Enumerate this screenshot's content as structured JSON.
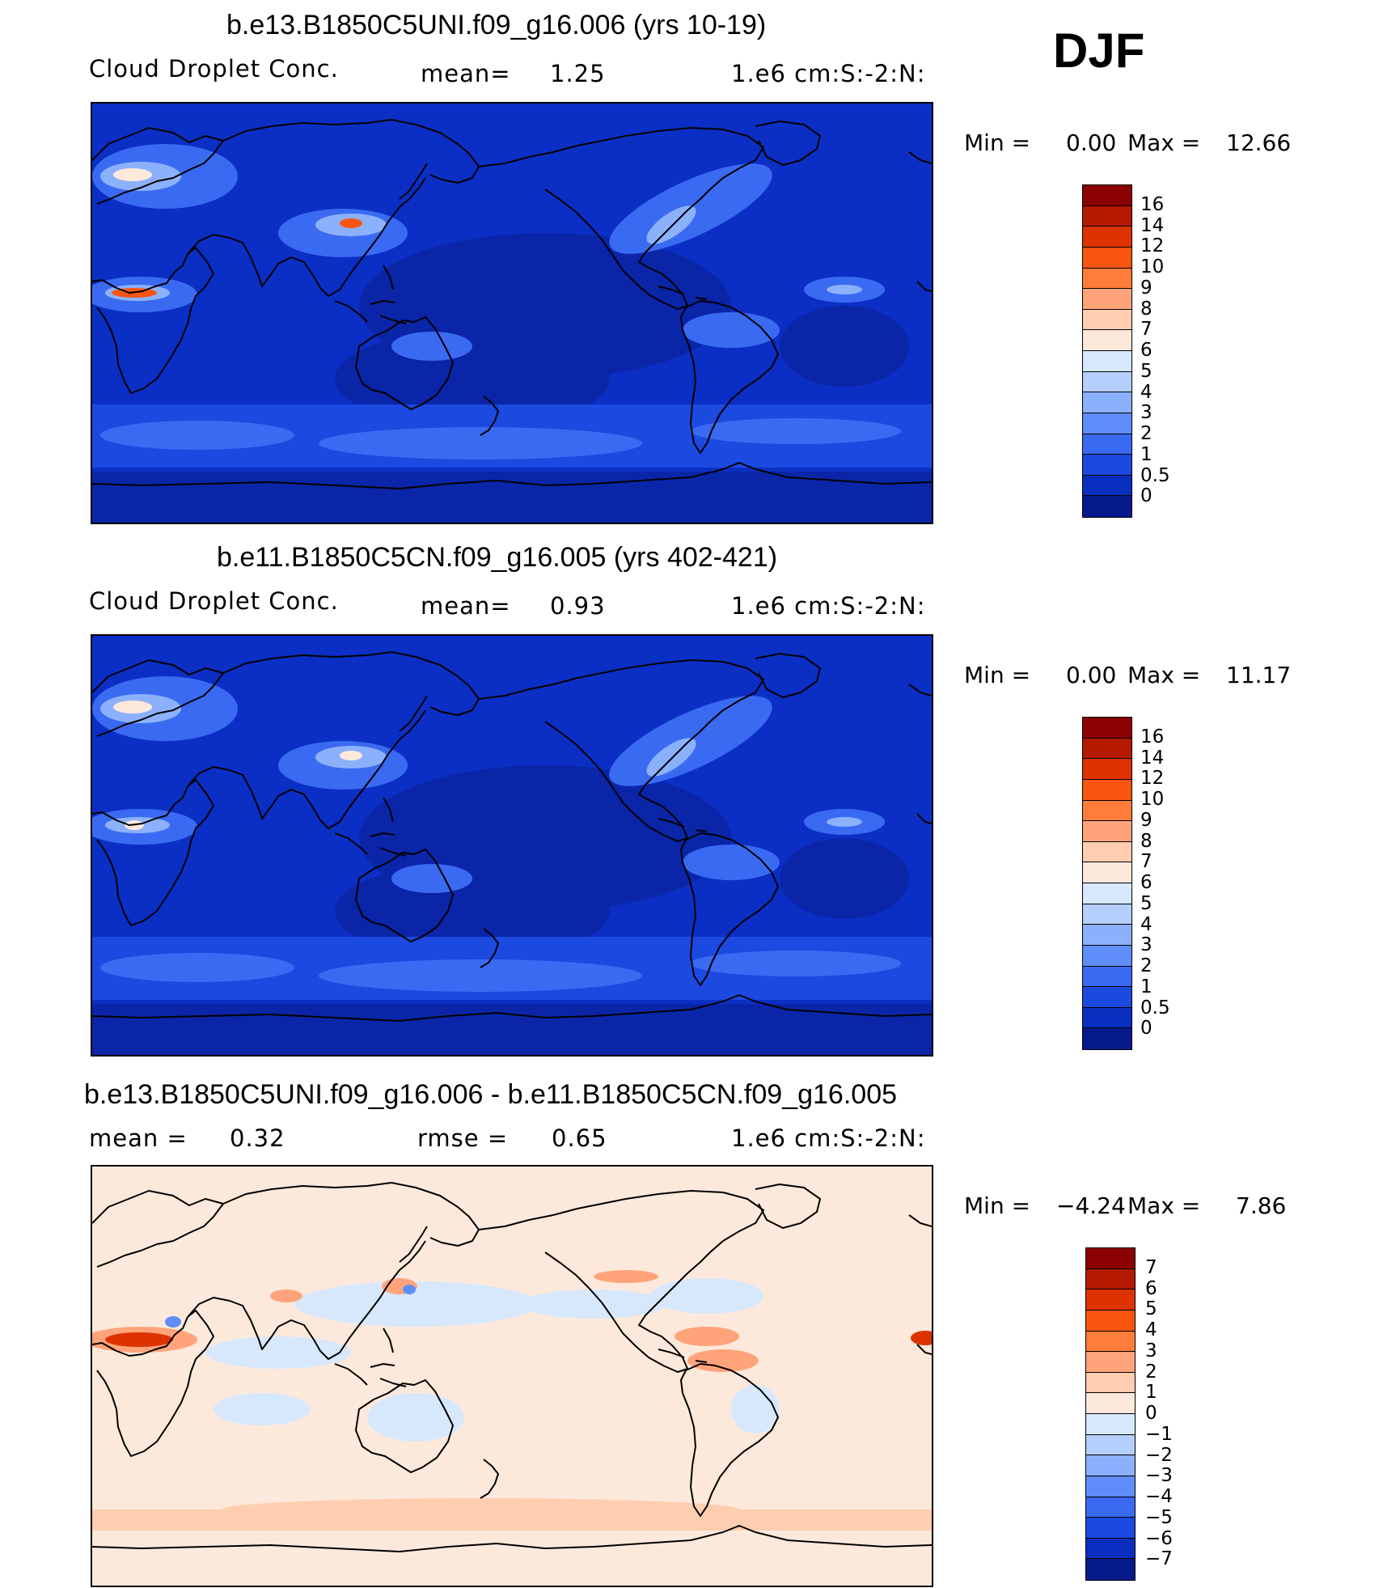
{
  "season": "DJF",
  "panels": [
    {
      "title": "b.e13.B1850C5UNI.f09_g16.006 (yrs 10-19)",
      "variable": "Cloud Droplet Conc.",
      "mean_label": "mean=",
      "mean_value": "1.25",
      "units": "1.e6 cm:S:-2:N:",
      "min_label": "Min =",
      "min_value": "0.00",
      "max_label": "Max =",
      "max_value": "12.66"
    },
    {
      "title": "b.e11.B1850C5CN.f09_g16.005 (yrs 402-421)",
      "variable": "Cloud Droplet Conc.",
      "mean_label": "mean=",
      "mean_value": "0.93",
      "units": "1.e6 cm:S:-2:N:",
      "min_label": "Min =",
      "min_value": "0.00",
      "max_label": "Max =",
      "max_value": "11.17"
    },
    {
      "title": "b.e13.B1850C5UNI.f09_g16.006 - b.e11.B1850C5CN.f09_g16.005",
      "mean_label": "mean =",
      "mean_value": "0.32",
      "rmse_label": "rmse =",
      "rmse_value": "0.65",
      "units": "1.e6 cm:S:-2:N:",
      "min_label": "Min =",
      "min_value": "−4.24",
      "max_label": "Max =",
      "max_value": "7.86"
    }
  ],
  "legend_abs": {
    "labels": [
      "16",
      "14",
      "12",
      "10",
      "9",
      "8",
      "7",
      "6",
      "5",
      "4",
      "3",
      "2",
      "1",
      "0.5",
      "0"
    ],
    "colors": [
      "#8b0000",
      "#b51a00",
      "#dd3300",
      "#f85510",
      "#ff7c3a",
      "#ffa47a",
      "#ffcdb0",
      "#fde9dc",
      "#d7e8fc",
      "#b5cffc",
      "#8cb1fc",
      "#5f8efb",
      "#3b6af2",
      "#1c49e0",
      "#0a2ec0",
      "#061a8c"
    ]
  },
  "legend_diff": {
    "labels": [
      "7",
      "6",
      "5",
      "4",
      "3",
      "2",
      "1",
      "0",
      "−1",
      "−2",
      "−3",
      "−4",
      "−5",
      "−6",
      "−7"
    ],
    "colors": [
      "#8b0000",
      "#b51a00",
      "#dd3300",
      "#f85510",
      "#ff7c3a",
      "#ffa47a",
      "#ffcdb0",
      "#fde9dc",
      "#d7e8fc",
      "#b5cffc",
      "#8cb1fc",
      "#5f8efb",
      "#3b6af2",
      "#1c49e0",
      "#0a2ec0",
      "#061a8c"
    ]
  },
  "map_colors": {
    "abs_background": "#0b2fc4",
    "abs_deep": "#0a25a8",
    "abs_band": "#1c49e0",
    "abs_band2": "#3b6af2",
    "abs_light": "#8cb1fc",
    "abs_white": "#fde9dc",
    "abs_hot": "#f85510",
    "diff_background": "#fde9dc",
    "diff_neg": "#d7e8fc",
    "diff_pos": "#ffcdb0",
    "diff_pos2": "#ffa47a",
    "diff_hot": "#dd3300",
    "diff_negblue": "#5f8efb"
  }
}
